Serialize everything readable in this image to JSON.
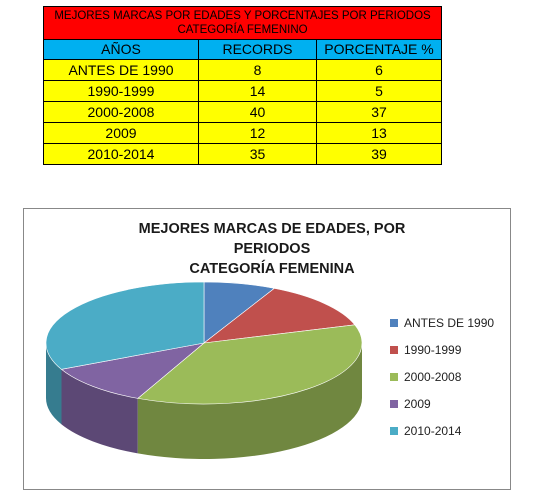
{
  "table": {
    "title": "MEJORES MARCAS POR EDADES Y PORCENTAJES POR PERIODOS CATEGORÍA FEMENINO",
    "headers": [
      "AÑOS",
      "RECORDS",
      "PORCENTAJE %"
    ],
    "rows": [
      [
        "ANTES DE 1990",
        "8",
        "6"
      ],
      [
        "1990-1999",
        "14",
        "5"
      ],
      [
        "2000-2008",
        "40",
        "37"
      ],
      [
        "2009",
        "12",
        "13"
      ],
      [
        "2010-2014",
        "35",
        "39"
      ]
    ],
    "colors": {
      "title_bg": "#ff0000",
      "header_bg": "#00b0f0",
      "body_bg": "#ffff00"
    }
  },
  "chart_data": {
    "type": "pie",
    "title_line1": "MEJORES MARCAS DE EDADES, POR PERIODOS",
    "title_line2": "CATEGORÍA FEMENINA",
    "categories": [
      "ANTES DE 1990",
      "1990-1999",
      "2000-2008",
      "2009",
      "2010-2014"
    ],
    "values": [
      8,
      14,
      40,
      12,
      35
    ],
    "colors": [
      "#4f81bd",
      "#c0504d",
      "#9bbb59",
      "#8064a2",
      "#4bacc6"
    ],
    "legend_position": "right",
    "style": "3d"
  }
}
